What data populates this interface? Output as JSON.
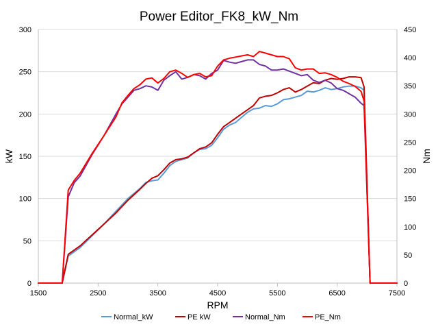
{
  "chart_data": {
    "type": "line",
    "title": "Power Editor_FK8_kW_Nm",
    "xlabel": "RPM",
    "ylabel_left": "kW",
    "ylabel_right": "Nm",
    "xlim": [
      1500,
      7500
    ],
    "ylim_left": [
      0,
      300
    ],
    "ylim_right": [
      0,
      450
    ],
    "x_ticks": [
      1500,
      2500,
      3500,
      4500,
      5500,
      6500,
      7500
    ],
    "y_ticks_left": [
      0,
      50,
      100,
      150,
      200,
      250,
      300
    ],
    "y_ticks_right": [
      0,
      50,
      100,
      150,
      200,
      250,
      300,
      350,
      400,
      450
    ],
    "grid": true,
    "legend_position": "bottom",
    "colors": {
      "normal_kw": "#5b9bd5",
      "pe_kw": "#c00000",
      "normal_nm": "#7030a0",
      "pe_nm": "#ff0000"
    },
    "series": [
      {
        "name": "Normal_kW",
        "axis": "left",
        "color": "#5b9bd5",
        "x": [
          1500,
          1900,
          2000,
          2200,
          2400,
          2600,
          2800,
          3000,
          3200,
          3300,
          3400,
          3500,
          3600,
          3700,
          3800,
          3900,
          4000,
          4100,
          4200,
          4300,
          4400,
          4500,
          4600,
          4700,
          4800,
          4900,
          5000,
          5100,
          5200,
          5300,
          5400,
          5500,
          5600,
          5700,
          5800,
          5900,
          6000,
          6100,
          6200,
          6300,
          6400,
          6500,
          6600,
          6700,
          6800,
          6900,
          6950,
          7050,
          7500
        ],
        "values": [
          0,
          0,
          32,
          42,
          56,
          70,
          85,
          100,
          112,
          119,
          121,
          122,
          130,
          139,
          144,
          146,
          148,
          154,
          158,
          159,
          163,
          172,
          182,
          187,
          190,
          196,
          202,
          206,
          207,
          210,
          209,
          212,
          217,
          218,
          220,
          222,
          227,
          226,
          228,
          231,
          229,
          230,
          232,
          233,
          233,
          231,
          228,
          0,
          0
        ]
      },
      {
        "name": "PE kW",
        "axis": "left",
        "color": "#c00000",
        "x": [
          1500,
          1900,
          2000,
          2200,
          2400,
          2600,
          2800,
          3000,
          3200,
          3300,
          3400,
          3500,
          3600,
          3700,
          3800,
          3900,
          4000,
          4100,
          4200,
          4300,
          4400,
          4500,
          4600,
          4700,
          4800,
          4900,
          5000,
          5100,
          5200,
          5300,
          5400,
          5500,
          5600,
          5700,
          5800,
          5900,
          6000,
          6100,
          6200,
          6300,
          6400,
          6500,
          6600,
          6700,
          6800,
          6900,
          6950,
          7050,
          7500
        ],
        "values": [
          0,
          0,
          34,
          44,
          57,
          70,
          83,
          98,
          111,
          118,
          124,
          127,
          134,
          142,
          146,
          147,
          149,
          154,
          159,
          161,
          166,
          176,
          185,
          190,
          195,
          200,
          205,
          210,
          219,
          221,
          222,
          225,
          229,
          231,
          226,
          229,
          233,
          237,
          236,
          240,
          242,
          241,
          242,
          244,
          244,
          243,
          232,
          0,
          0
        ]
      },
      {
        "name": "Normal_Nm",
        "axis": "right",
        "color": "#7030a0",
        "x": [
          1500,
          1900,
          2000,
          2100,
          2200,
          2400,
          2600,
          2800,
          2900,
          3000,
          3100,
          3200,
          3300,
          3400,
          3500,
          3600,
          3700,
          3800,
          3900,
          4000,
          4100,
          4200,
          4300,
          4400,
          4500,
          4600,
          4700,
          4800,
          4900,
          5000,
          5100,
          5200,
          5300,
          5400,
          5500,
          5600,
          5700,
          5800,
          5900,
          6000,
          6100,
          6200,
          6300,
          6400,
          6500,
          6600,
          6700,
          6800,
          6900,
          6950,
          7050,
          7500
        ],
        "values": [
          0,
          0,
          153,
          178,
          190,
          228,
          262,
          300,
          318,
          330,
          342,
          345,
          350,
          348,
          342,
          360,
          368,
          375,
          362,
          365,
          370,
          368,
          362,
          372,
          378,
          395,
          392,
          390,
          393,
          396,
          396,
          388,
          385,
          378,
          378,
          380,
          376,
          372,
          368,
          370,
          360,
          356,
          360,
          355,
          345,
          342,
          336,
          330,
          319,
          315,
          0,
          0
        ]
      },
      {
        "name": "PE_Nm",
        "axis": "right",
        "color": "#ff0000",
        "x": [
          1500,
          1900,
          2000,
          2100,
          2200,
          2400,
          2600,
          2800,
          2900,
          3000,
          3100,
          3200,
          3300,
          3400,
          3500,
          3600,
          3700,
          3800,
          3900,
          4000,
          4100,
          4200,
          4300,
          4400,
          4500,
          4600,
          4700,
          4800,
          4900,
          5000,
          5100,
          5200,
          5300,
          5400,
          5500,
          5600,
          5700,
          5800,
          5900,
          6000,
          6100,
          6200,
          6300,
          6400,
          6500,
          6600,
          6700,
          6800,
          6900,
          6950,
          7050,
          7500
        ],
        "values": [
          0,
          0,
          165,
          182,
          195,
          230,
          262,
          295,
          320,
          333,
          345,
          352,
          362,
          364,
          355,
          363,
          375,
          378,
          372,
          365,
          370,
          372,
          366,
          368,
          385,
          396,
          399,
          401,
          403,
          405,
          402,
          411,
          408,
          405,
          402,
          402,
          398,
          382,
          378,
          380,
          380,
          372,
          373,
          370,
          365,
          358,
          354,
          349,
          340,
          323,
          0,
          0
        ]
      }
    ]
  }
}
